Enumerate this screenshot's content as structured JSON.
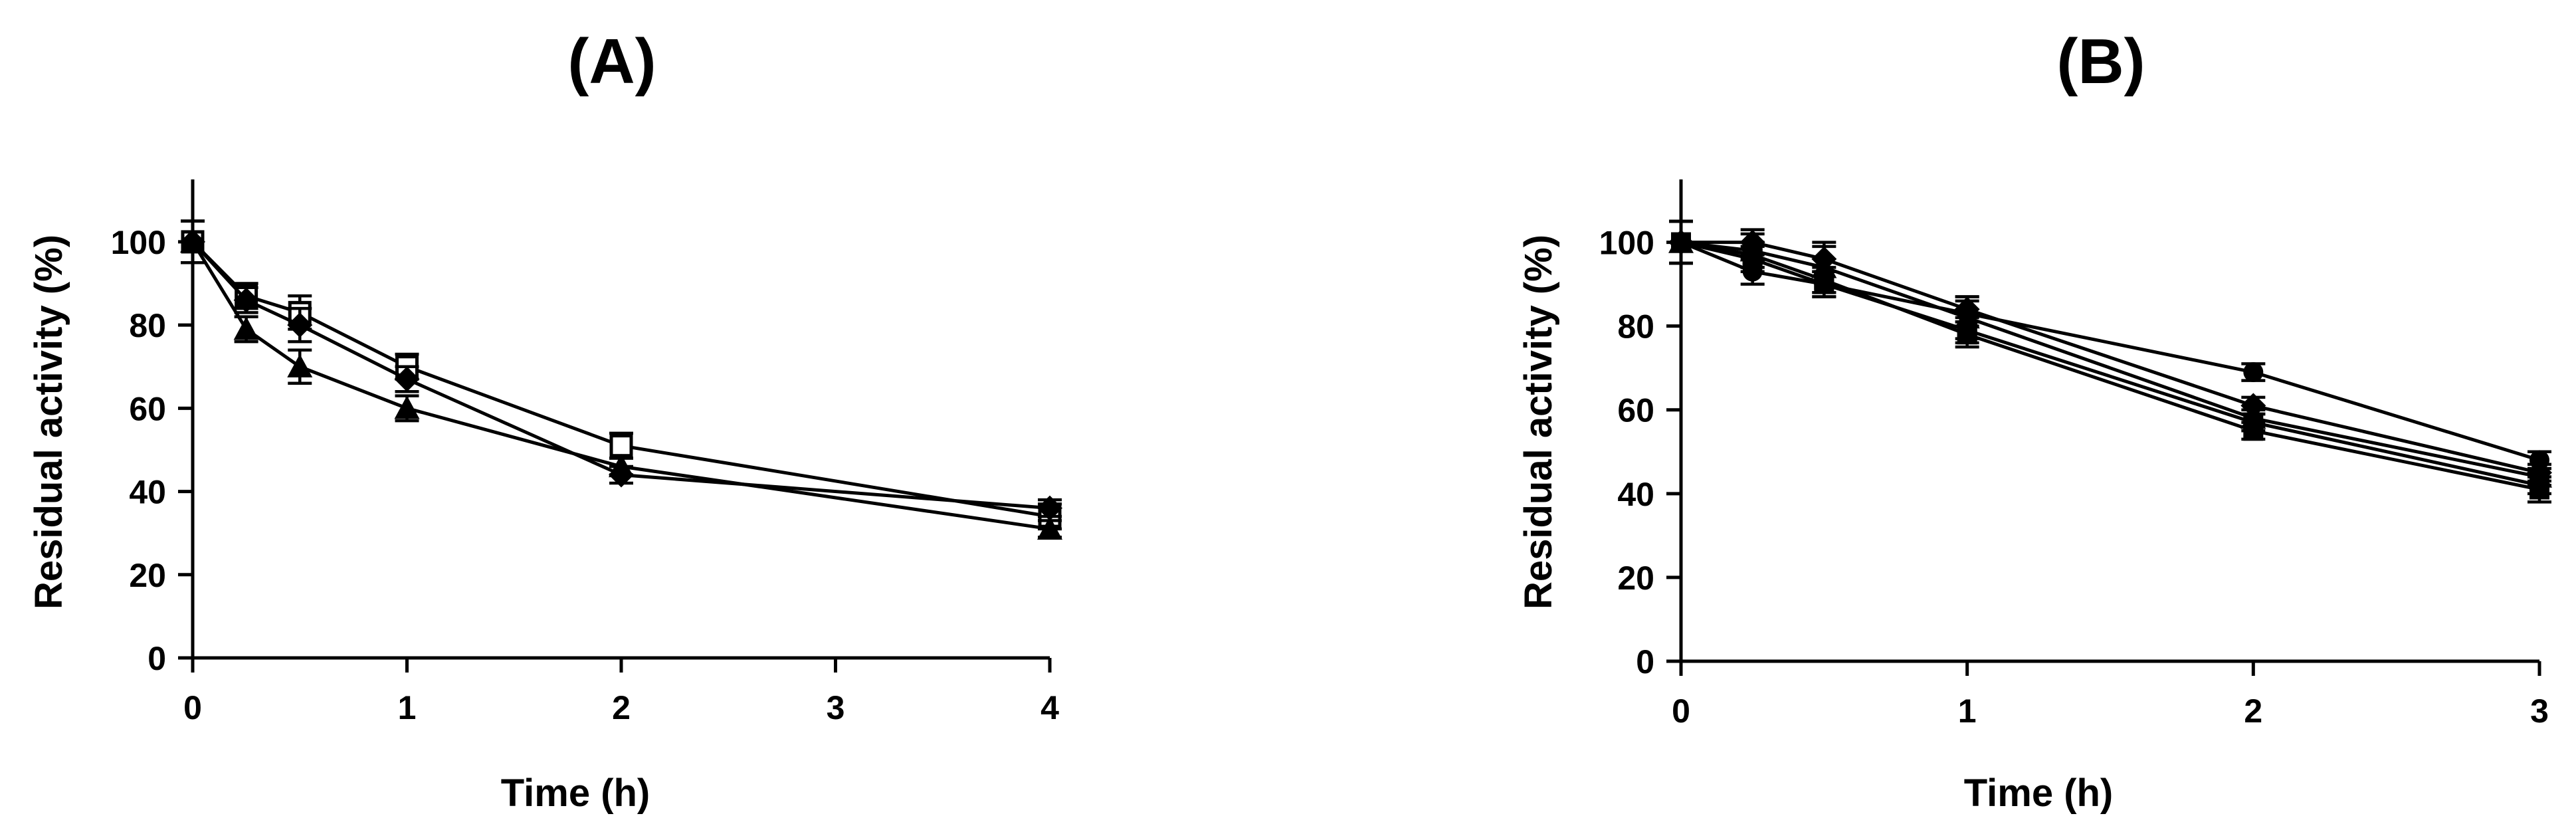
{
  "chart_data": [
    {
      "type": "line",
      "title": "(A)",
      "xlabel": "Time (h)",
      "ylabel": "Residual activity (%)",
      "xlim": [
        0,
        4
      ],
      "ylim": [
        0,
        115
      ],
      "xticks": [
        0,
        1,
        2,
        3,
        4
      ],
      "yticks": [
        0,
        20,
        40,
        60,
        80,
        100
      ],
      "grid": false,
      "legend": "none",
      "series": [
        {
          "marker": "open-square",
          "x": [
            0,
            0.25,
            0.5,
            1,
            2,
            4
          ],
          "y": [
            100,
            87,
            83,
            70,
            51,
            34
          ],
          "err": [
            5,
            3,
            4,
            3,
            3,
            3
          ]
        },
        {
          "marker": "diamond",
          "x": [
            0,
            0.25,
            0.5,
            1,
            2,
            4
          ],
          "y": [
            100,
            86,
            80,
            67,
            44,
            36
          ],
          "err": [
            5,
            3,
            4,
            3,
            2,
            2
          ]
        },
        {
          "marker": "triangle",
          "x": [
            0,
            0.25,
            0.5,
            1,
            2,
            4
          ],
          "y": [
            100,
            79,
            70,
            60,
            46,
            31
          ],
          "err": [
            5,
            3,
            4,
            3,
            2,
            2
          ]
        }
      ]
    },
    {
      "type": "line",
      "title": "(B)",
      "xlabel": "Time (h)",
      "ylabel": "Residual activity (%)",
      "xlim": [
        0,
        3
      ],
      "ylim": [
        0,
        115
      ],
      "xticks": [
        0,
        1,
        2,
        3
      ],
      "yticks": [
        0,
        20,
        40,
        60,
        80,
        100
      ],
      "grid": false,
      "legend": "none",
      "series": [
        {
          "marker": "circle",
          "x": [
            0,
            0.25,
            0.5,
            1,
            2,
            3
          ],
          "y": [
            100,
            93,
            90,
            83,
            69,
            48
          ],
          "err": [
            5,
            3,
            3,
            3,
            2,
            2
          ]
        },
        {
          "marker": "diamond",
          "x": [
            0,
            0.25,
            0.5,
            1,
            2,
            3
          ],
          "y": [
            100,
            100,
            96,
            84,
            61,
            45
          ],
          "err": [
            5,
            3,
            3,
            3,
            2,
            2
          ]
        },
        {
          "marker": "triangle",
          "x": [
            0,
            0.25,
            0.5,
            1,
            2,
            3
          ],
          "y": [
            100,
            98,
            94,
            82,
            58,
            44
          ],
          "err": [
            5,
            4,
            6,
            5,
            2,
            2
          ]
        },
        {
          "marker": "square",
          "x": [
            0,
            0.25,
            0.5,
            1,
            2,
            3
          ],
          "y": [
            100,
            96,
            90,
            79,
            57,
            42
          ],
          "err": [
            5,
            3,
            3,
            3,
            2,
            2
          ]
        },
        {
          "marker": "square",
          "x": [
            0,
            0.25,
            0.5,
            1,
            2,
            3
          ],
          "y": [
            100,
            97,
            91,
            78,
            55,
            41
          ],
          "err": [
            5,
            3,
            3,
            3,
            2,
            3
          ]
        }
      ]
    }
  ]
}
